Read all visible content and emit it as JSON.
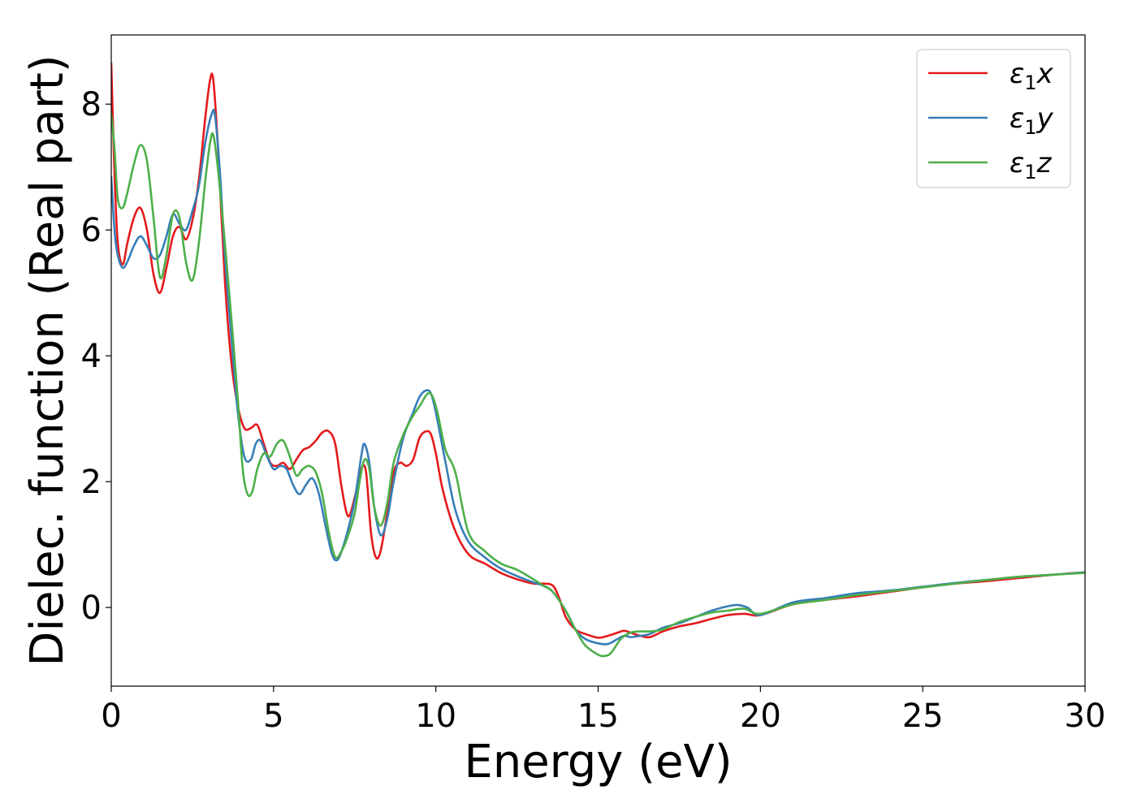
{
  "chart_data": {
    "type": "line",
    "title": "",
    "xlabel": "Energy (eV)",
    "ylabel": "Dielec. function (Real part)",
    "xlim": [
      0,
      30
    ],
    "ylim": [
      -1.25,
      9.1
    ],
    "xticks": [
      0,
      5,
      10,
      15,
      20,
      25,
      30
    ],
    "xtick_labels": [
      "0",
      "5",
      "10",
      "15",
      "20",
      "25",
      "30"
    ],
    "yticks": [
      0,
      2,
      4,
      6,
      8
    ],
    "ytick_labels": [
      "0",
      "2",
      "4",
      "6",
      "8"
    ],
    "grid": false,
    "legend_position": "top-right",
    "series": [
      {
        "name": "ε₁x",
        "legend": {
          "symbol": "ε",
          "sub": "1",
          "axis": "x"
        },
        "color": "#e41a1c",
        "x": [
          0,
          0.1,
          0.2,
          0.35,
          0.5,
          0.7,
          0.9,
          1.1,
          1.3,
          1.5,
          1.7,
          1.9,
          2.1,
          2.3,
          2.5,
          2.7,
          2.9,
          3.05,
          3.15,
          3.3,
          3.5,
          3.7,
          3.9,
          4.1,
          4.3,
          4.5,
          4.7,
          4.9,
          5.1,
          5.3,
          5.5,
          5.7,
          5.9,
          6.1,
          6.3,
          6.5,
          6.7,
          6.9,
          7.1,
          7.3,
          7.5,
          7.7,
          7.85,
          8.0,
          8.15,
          8.3,
          8.5,
          8.7,
          8.9,
          9.1,
          9.3,
          9.5,
          9.7,
          9.85,
          10.0,
          10.2,
          10.5,
          10.8,
          11.1,
          11.5,
          12.0,
          12.5,
          13.0,
          13.3,
          13.6,
          13.8,
          14.0,
          14.3,
          14.6,
          15.0,
          15.3,
          15.6,
          15.8,
          16.0,
          16.3,
          16.6,
          17.0,
          17.5,
          18.0,
          18.5,
          19.0,
          19.5,
          20.0,
          21.0,
          22.0,
          23.0,
          24.0,
          25.0,
          26.0,
          27.0,
          28.0,
          29.0,
          30.0
        ],
        "y": [
          8.65,
          6.9,
          5.8,
          5.45,
          5.8,
          6.2,
          6.35,
          6.0,
          5.3,
          5.0,
          5.4,
          5.9,
          6.05,
          5.85,
          6.15,
          6.8,
          7.8,
          8.4,
          8.35,
          7.2,
          5.2,
          3.9,
          3.2,
          2.85,
          2.85,
          2.9,
          2.6,
          2.3,
          2.25,
          2.3,
          2.2,
          2.35,
          2.5,
          2.55,
          2.65,
          2.78,
          2.8,
          2.6,
          1.9,
          1.45,
          1.75,
          2.2,
          2.15,
          1.2,
          0.8,
          0.9,
          1.5,
          2.15,
          2.3,
          2.25,
          2.35,
          2.7,
          2.8,
          2.75,
          2.45,
          1.9,
          1.35,
          1.0,
          0.8,
          0.7,
          0.55,
          0.45,
          0.38,
          0.38,
          0.35,
          0.15,
          -0.15,
          -0.35,
          -0.42,
          -0.48,
          -0.45,
          -0.4,
          -0.37,
          -0.4,
          -0.45,
          -0.47,
          -0.38,
          -0.3,
          -0.25,
          -0.18,
          -0.12,
          -0.1,
          -0.12,
          0.05,
          0.12,
          0.18,
          0.25,
          0.32,
          0.38,
          0.42,
          0.47,
          0.52,
          0.56
        ]
      },
      {
        "name": "ε₁y",
        "legend": {
          "symbol": "ε",
          "sub": "1",
          "axis": "y"
        },
        "color": "#377eb8",
        "x": [
          0,
          0.1,
          0.2,
          0.35,
          0.5,
          0.7,
          0.9,
          1.1,
          1.3,
          1.5,
          1.7,
          1.9,
          2.1,
          2.3,
          2.5,
          2.7,
          2.9,
          3.1,
          3.2,
          3.35,
          3.5,
          3.7,
          3.9,
          4.1,
          4.3,
          4.45,
          4.6,
          4.8,
          5.0,
          5.2,
          5.4,
          5.6,
          5.8,
          6.0,
          6.2,
          6.4,
          6.6,
          6.8,
          6.95,
          7.1,
          7.3,
          7.5,
          7.7,
          7.8,
          7.95,
          8.1,
          8.3,
          8.5,
          8.7,
          9.0,
          9.3,
          9.5,
          9.7,
          9.85,
          10.0,
          10.3,
          10.6,
          11.0,
          11.5,
          12.0,
          12.5,
          13.0,
          13.3,
          13.6,
          14.0,
          14.3,
          14.6,
          15.0,
          15.3,
          15.6,
          15.8,
          16.0,
          16.3,
          16.6,
          17.0,
          17.5,
          18.0,
          18.5,
          19.0,
          19.3,
          19.6,
          20.0,
          21.0,
          22.0,
          23.0,
          24.0,
          25.0,
          26.0,
          27.0,
          28.0,
          29.0,
          30.0
        ],
        "y": [
          6.85,
          6.0,
          5.6,
          5.4,
          5.5,
          5.75,
          5.9,
          5.75,
          5.55,
          5.6,
          5.9,
          6.25,
          6.1,
          6.0,
          6.3,
          6.7,
          7.4,
          7.85,
          7.8,
          6.9,
          5.6,
          4.3,
          3.1,
          2.4,
          2.35,
          2.6,
          2.65,
          2.4,
          2.2,
          2.25,
          2.2,
          1.95,
          1.8,
          1.95,
          2.05,
          1.8,
          1.3,
          0.85,
          0.75,
          0.9,
          1.25,
          1.7,
          2.4,
          2.6,
          2.3,
          1.6,
          1.15,
          1.4,
          2.0,
          2.7,
          3.1,
          3.35,
          3.45,
          3.4,
          3.1,
          2.3,
          1.55,
          1.05,
          0.8,
          0.62,
          0.5,
          0.4,
          0.35,
          0.25,
          -0.05,
          -0.35,
          -0.5,
          -0.57,
          -0.58,
          -0.5,
          -0.45,
          -0.47,
          -0.45,
          -0.42,
          -0.32,
          -0.25,
          -0.15,
          -0.05,
          0.02,
          0.04,
          0.0,
          -0.12,
          0.08,
          0.15,
          0.23,
          0.27,
          0.33,
          0.39,
          0.44,
          0.49,
          0.52,
          0.56
        ]
      },
      {
        "name": "ε₁z",
        "legend": {
          "symbol": "ε",
          "sub": "1",
          "axis": "z"
        },
        "color": "#4daf4a",
        "x": [
          0,
          0.1,
          0.2,
          0.35,
          0.5,
          0.7,
          0.9,
          1.1,
          1.3,
          1.5,
          1.7,
          1.9,
          2.1,
          2.3,
          2.5,
          2.7,
          2.9,
          3.05,
          3.15,
          3.3,
          3.5,
          3.7,
          3.9,
          4.05,
          4.2,
          4.35,
          4.5,
          4.7,
          4.9,
          5.1,
          5.3,
          5.5,
          5.7,
          5.9,
          6.1,
          6.3,
          6.5,
          6.7,
          6.9,
          7.1,
          7.3,
          7.5,
          7.65,
          7.8,
          7.95,
          8.1,
          8.3,
          8.5,
          8.7,
          9.0,
          9.3,
          9.5,
          9.75,
          9.9,
          10.05,
          10.3,
          10.6,
          11.0,
          11.5,
          12.0,
          12.5,
          13.0,
          13.3,
          13.6,
          14.0,
          14.3,
          14.6,
          15.0,
          15.2,
          15.4,
          15.7,
          16.0,
          16.3,
          16.6,
          17.0,
          17.5,
          18.0,
          18.5,
          19.0,
          19.5,
          20.0,
          21.0,
          22.0,
          23.0,
          24.0,
          25.0,
          26.0,
          27.0,
          28.0,
          29.0,
          30.0
        ],
        "y": [
          7.85,
          7.3,
          6.5,
          6.35,
          6.6,
          7.05,
          7.35,
          7.1,
          6.2,
          5.25,
          5.6,
          6.25,
          6.2,
          5.5,
          5.2,
          5.8,
          6.8,
          7.4,
          7.5,
          6.9,
          5.8,
          4.6,
          3.3,
          2.2,
          1.8,
          1.85,
          2.2,
          2.45,
          2.4,
          2.6,
          2.65,
          2.4,
          2.1,
          2.2,
          2.25,
          2.15,
          1.8,
          1.2,
          0.8,
          0.9,
          1.15,
          1.5,
          2.0,
          2.35,
          2.2,
          1.6,
          1.3,
          1.65,
          2.3,
          2.75,
          3.05,
          3.2,
          3.4,
          3.35,
          3.1,
          2.5,
          2.15,
          1.2,
          0.9,
          0.7,
          0.6,
          0.45,
          0.35,
          0.25,
          -0.05,
          -0.35,
          -0.6,
          -0.75,
          -0.77,
          -0.72,
          -0.5,
          -0.4,
          -0.38,
          -0.38,
          -0.35,
          -0.23,
          -0.15,
          -0.08,
          -0.05,
          -0.02,
          -0.1,
          0.05,
          0.12,
          0.2,
          0.26,
          0.32,
          0.38,
          0.44,
          0.49,
          0.52,
          0.55
        ]
      }
    ]
  }
}
